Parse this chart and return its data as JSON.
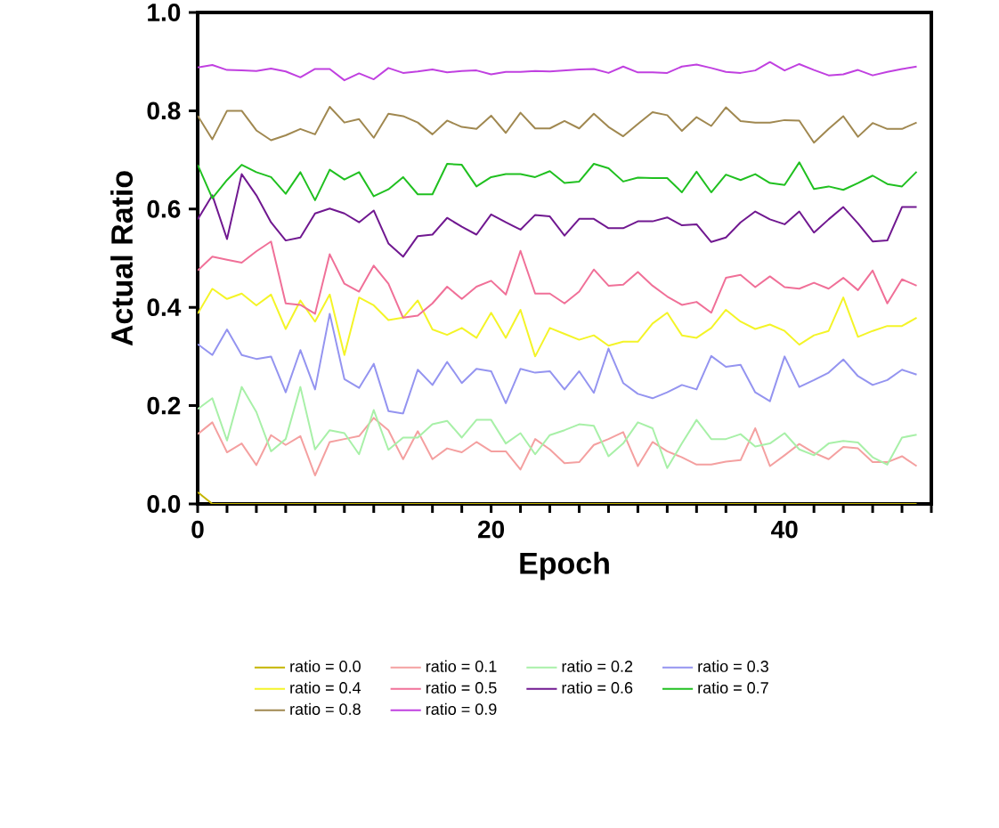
{
  "chart_data": {
    "type": "line",
    "xlabel": "Epoch",
    "ylabel": "Actual Ratio",
    "x": [
      0,
      1,
      2,
      3,
      4,
      5,
      6,
      7,
      8,
      9,
      10,
      11,
      12,
      13,
      14,
      15,
      16,
      17,
      18,
      19,
      20,
      21,
      22,
      23,
      24,
      25,
      26,
      27,
      28,
      29,
      30,
      31,
      32,
      33,
      34,
      35,
      36,
      37,
      38,
      39,
      40,
      41,
      42,
      43,
      44,
      45,
      46,
      47,
      48,
      49
    ],
    "xlim": [
      0,
      50
    ],
    "ylim": [
      0,
      1
    ],
    "xticks": [
      0,
      {
        "value": 2,
        "label": null
      },
      {
        "value": 4,
        "label": null
      },
      {
        "value": 6,
        "label": null
      },
      {
        "value": 8,
        "label": null
      },
      {
        "value": 10,
        "label": null
      },
      {
        "value": 12,
        "label": null
      },
      {
        "value": 14,
        "label": null
      },
      {
        "value": 16,
        "label": null
      },
      {
        "value": 18,
        "label": null
      },
      20,
      {
        "value": 22,
        "label": null
      },
      {
        "value": 24,
        "label": null
      },
      {
        "value": 26,
        "label": null
      },
      {
        "value": 28,
        "label": null
      },
      {
        "value": 30,
        "label": null
      },
      {
        "value": 32,
        "label": null
      },
      {
        "value": 34,
        "label": null
      },
      {
        "value": 36,
        "label": null
      },
      {
        "value": 38,
        "label": null
      },
      40,
      {
        "value": 42,
        "label": null
      },
      {
        "value": 44,
        "label": null
      },
      {
        "value": 46,
        "label": null
      },
      {
        "value": 48,
        "label": null
      },
      {
        "value": 50,
        "label": null
      }
    ],
    "yticks": [
      {
        "value": 0,
        "label": "0.0"
      },
      0.2,
      0.4,
      0.6,
      0.8,
      {
        "value": 1,
        "label": "1.0"
      }
    ],
    "legend": "bottom",
    "grid": false,
    "marker": "none",
    "line_style": "solid",
    "series": [
      {
        "name": "ratio = 0.0",
        "color": "#c4b400",
        "values": [
          0.024,
          0,
          0,
          0,
          0,
          0,
          0,
          0,
          0,
          0,
          0,
          0,
          0,
          0,
          0,
          0,
          0,
          0,
          0,
          0,
          0,
          0,
          0,
          0,
          0,
          0,
          0,
          0,
          0,
          0,
          0,
          0,
          0,
          0,
          0,
          0,
          0,
          0,
          0,
          0,
          0,
          0,
          0,
          0,
          0,
          0,
          0,
          0,
          0,
          0
        ]
      },
      {
        "name": "ratio = 0.1",
        "color": "#f4a0a0",
        "values": [
          0.142,
          0.166,
          0.105,
          0.123,
          0.079,
          0.14,
          0.12,
          0.138,
          0.058,
          0.126,
          0.132,
          0.138,
          0.175,
          0.15,
          0.091,
          0.148,
          0.091,
          0.113,
          0.105,
          0.126,
          0.107,
          0.107,
          0.07,
          0.132,
          0.111,
          0.083,
          0.085,
          0.12,
          0.132,
          0.146,
          0.077,
          0.126,
          0.107,
          0.095,
          0.08,
          0.08,
          0.086,
          0.089,
          0.154,
          0.077,
          0.099,
          0.122,
          0.104,
          0.091,
          0.116,
          0.113,
          0.085,
          0.085,
          0.097,
          0.077
        ]
      },
      {
        "name": "ratio = 0.2",
        "color": "#a8f0a8",
        "values": [
          0.193,
          0.215,
          0.129,
          0.238,
          0.187,
          0.107,
          0.132,
          0.238,
          0.111,
          0.15,
          0.144,
          0.101,
          0.191,
          0.11,
          0.135,
          0.135,
          0.162,
          0.169,
          0.135,
          0.171,
          0.171,
          0.123,
          0.144,
          0.101,
          0.14,
          0.15,
          0.162,
          0.159,
          0.097,
          0.123,
          0.166,
          0.154,
          0.073,
          0.123,
          0.171,
          0.132,
          0.132,
          0.142,
          0.117,
          0.123,
          0.144,
          0.111,
          0.099,
          0.123,
          0.128,
          0.125,
          0.095,
          0.08,
          0.135,
          0.141
        ]
      },
      {
        "name": "ratio = 0.3",
        "color": "#9494f0",
        "values": [
          0.325,
          0.303,
          0.355,
          0.303,
          0.295,
          0.3,
          0.227,
          0.313,
          0.233,
          0.387,
          0.254,
          0.236,
          0.285,
          0.189,
          0.184,
          0.273,
          0.242,
          0.289,
          0.246,
          0.275,
          0.27,
          0.205,
          0.275,
          0.267,
          0.27,
          0.233,
          0.27,
          0.226,
          0.316,
          0.246,
          0.224,
          0.215,
          0.227,
          0.242,
          0.233,
          0.301,
          0.279,
          0.283,
          0.227,
          0.209,
          0.3,
          0.238,
          0.252,
          0.267,
          0.294,
          0.26,
          0.242,
          0.252,
          0.273,
          0.263
        ]
      },
      {
        "name": "ratio = 0.4",
        "color": "#f4f428",
        "values": [
          0.387,
          0.438,
          0.417,
          0.428,
          0.404,
          0.426,
          0.356,
          0.414,
          0.371,
          0.426,
          0.303,
          0.42,
          0.404,
          0.374,
          0.379,
          0.414,
          0.355,
          0.344,
          0.358,
          0.338,
          0.389,
          0.338,
          0.395,
          0.3,
          0.358,
          0.346,
          0.334,
          0.343,
          0.322,
          0.33,
          0.33,
          0.367,
          0.389,
          0.343,
          0.338,
          0.358,
          0.395,
          0.371,
          0.356,
          0.365,
          0.352,
          0.324,
          0.343,
          0.352,
          0.42,
          0.34,
          0.352,
          0.362,
          0.362,
          0.379
        ]
      },
      {
        "name": "ratio = 0.5",
        "color": "#f07098",
        "values": [
          0.475,
          0.503,
          0.497,
          0.491,
          0.514,
          0.534,
          0.408,
          0.405,
          0.387,
          0.508,
          0.448,
          0.432,
          0.485,
          0.448,
          0.379,
          0.383,
          0.408,
          0.442,
          0.417,
          0.442,
          0.454,
          0.426,
          0.515,
          0.428,
          0.428,
          0.408,
          0.432,
          0.477,
          0.444,
          0.446,
          0.472,
          0.444,
          0.422,
          0.405,
          0.411,
          0.389,
          0.46,
          0.466,
          0.441,
          0.463,
          0.441,
          0.438,
          0.45,
          0.438,
          0.46,
          0.435,
          0.475,
          0.408,
          0.457,
          0.444
        ]
      },
      {
        "name": "ratio = 0.6",
        "color": "#701890",
        "values": [
          0.579,
          0.628,
          0.539,
          0.671,
          0.628,
          0.573,
          0.536,
          0.542,
          0.591,
          0.601,
          0.591,
          0.573,
          0.597,
          0.53,
          0.503,
          0.545,
          0.548,
          0.582,
          0.564,
          0.548,
          0.589,
          0.573,
          0.558,
          0.588,
          0.585,
          0.546,
          0.58,
          0.58,
          0.561,
          0.561,
          0.575,
          0.575,
          0.583,
          0.567,
          0.569,
          0.533,
          0.542,
          0.573,
          0.595,
          0.579,
          0.569,
          0.595,
          0.552,
          0.579,
          0.604,
          0.571,
          0.534,
          0.536,
          0.604,
          0.604
        ]
      },
      {
        "name": "ratio = 0.7",
        "color": "#20c020",
        "values": [
          0.69,
          0.622,
          0.659,
          0.69,
          0.675,
          0.665,
          0.631,
          0.675,
          0.618,
          0.68,
          0.66,
          0.675,
          0.626,
          0.64,
          0.665,
          0.63,
          0.63,
          0.692,
          0.69,
          0.646,
          0.665,
          0.671,
          0.671,
          0.665,
          0.677,
          0.653,
          0.656,
          0.692,
          0.683,
          0.656,
          0.664,
          0.663,
          0.663,
          0.634,
          0.676,
          0.634,
          0.67,
          0.659,
          0.671,
          0.653,
          0.649,
          0.695,
          0.641,
          0.646,
          0.639,
          0.653,
          0.668,
          0.651,
          0.646,
          0.676
        ]
      },
      {
        "name": "ratio = 0.8",
        "color": "#a08850",
        "values": [
          0.79,
          0.742,
          0.8,
          0.8,
          0.76,
          0.74,
          0.75,
          0.763,
          0.752,
          0.808,
          0.776,
          0.783,
          0.745,
          0.794,
          0.789,
          0.776,
          0.752,
          0.78,
          0.767,
          0.763,
          0.79,
          0.755,
          0.796,
          0.764,
          0.764,
          0.779,
          0.764,
          0.794,
          0.767,
          0.748,
          0.773,
          0.797,
          0.791,
          0.759,
          0.787,
          0.769,
          0.807,
          0.779,
          0.776,
          0.776,
          0.781,
          0.78,
          0.735,
          0.763,
          0.789,
          0.747,
          0.775,
          0.763,
          0.763,
          0.776
        ]
      },
      {
        "name": "ratio = 0.9",
        "color": "#c040e0",
        "values": [
          0.888,
          0.893,
          0.883,
          0.882,
          0.881,
          0.886,
          0.88,
          0.868,
          0.885,
          0.885,
          0.862,
          0.876,
          0.864,
          0.887,
          0.877,
          0.88,
          0.884,
          0.878,
          0.881,
          0.882,
          0.874,
          0.879,
          0.879,
          0.881,
          0.88,
          0.882,
          0.884,
          0.885,
          0.877,
          0.89,
          0.878,
          0.878,
          0.877,
          0.89,
          0.894,
          0.887,
          0.879,
          0.877,
          0.882,
          0.899,
          0.882,
          0.895,
          0.883,
          0.872,
          0.874,
          0.883,
          0.872,
          0.879,
          0.885,
          0.89
        ]
      }
    ]
  }
}
